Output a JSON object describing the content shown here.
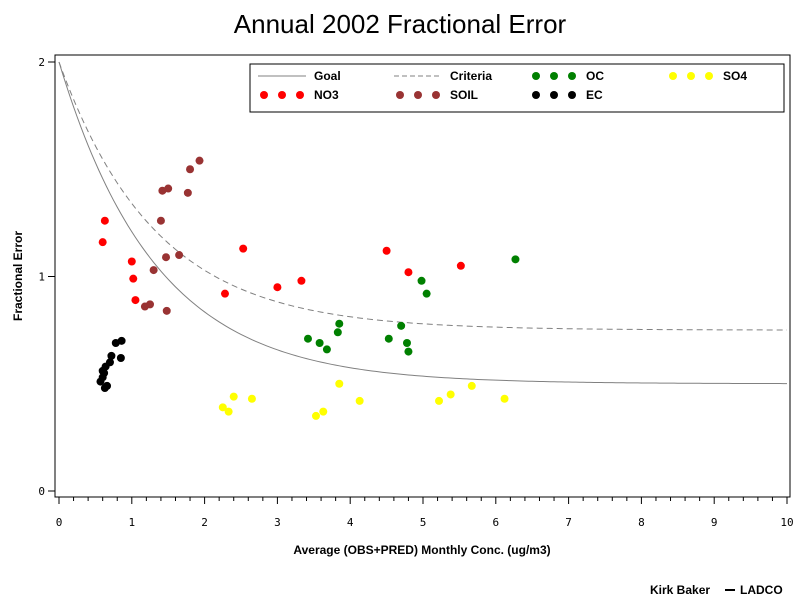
{
  "chart_data": {
    "type": "scatter",
    "title": "Annual 2002 Fractional Error",
    "xlabel": "Average (OBS+PRED) Monthly Conc. (ug/m3)",
    "ylabel": "Fractional Error",
    "xlim": [
      0,
      10
    ],
    "ylim": [
      0,
      2
    ],
    "x_ticks": [
      0,
      1,
      2,
      3,
      4,
      5,
      6,
      7,
      8,
      9,
      10
    ],
    "y_ticks": [
      0,
      1,
      2
    ],
    "grid": false,
    "legend_position": "top-right",
    "reference_curves": [
      {
        "name": "Goal",
        "style": "solid",
        "color": "#808080",
        "asymptote": 0.5,
        "start": 2.0,
        "decay": 0.75
      },
      {
        "name": "Criteria",
        "style": "dashed",
        "color": "#808080",
        "asymptote": 0.75,
        "start": 2.0,
        "decay": 0.75
      }
    ],
    "series": [
      {
        "name": "NO3",
        "color": "#ff0000",
        "points": [
          [
            0.6,
            1.16
          ],
          [
            0.63,
            1.26
          ],
          [
            1.0,
            1.07
          ],
          [
            1.02,
            0.99
          ],
          [
            1.05,
            0.89
          ],
          [
            2.28,
            0.92
          ],
          [
            2.53,
            1.13
          ],
          [
            3.0,
            0.95
          ],
          [
            3.33,
            0.98
          ],
          [
            4.5,
            1.12
          ],
          [
            4.8,
            1.02
          ],
          [
            5.52,
            1.05
          ]
        ]
      },
      {
        "name": "SOIL",
        "color": "#993333",
        "points": [
          [
            1.18,
            0.86
          ],
          [
            1.25,
            0.87
          ],
          [
            1.3,
            1.03
          ],
          [
            1.4,
            1.26
          ],
          [
            1.42,
            1.4
          ],
          [
            1.47,
            1.09
          ],
          [
            1.5,
            1.41
          ],
          [
            1.48,
            0.84
          ],
          [
            1.65,
            1.1
          ],
          [
            1.77,
            1.39
          ],
          [
            1.8,
            1.5
          ],
          [
            1.93,
            1.54
          ]
        ]
      },
      {
        "name": "OC",
        "color": "#008000",
        "points": [
          [
            3.42,
            0.71
          ],
          [
            3.58,
            0.69
          ],
          [
            3.68,
            0.66
          ],
          [
            3.83,
            0.74
          ],
          [
            3.85,
            0.78
          ],
          [
            4.53,
            0.71
          ],
          [
            4.7,
            0.77
          ],
          [
            4.78,
            0.69
          ],
          [
            4.8,
            0.65
          ],
          [
            4.98,
            0.98
          ],
          [
            5.05,
            0.92
          ],
          [
            6.27,
            1.08
          ]
        ]
      },
      {
        "name": "EC",
        "color": "#000000",
        "points": [
          [
            0.57,
            0.51
          ],
          [
            0.6,
            0.53
          ],
          [
            0.62,
            0.55
          ],
          [
            0.64,
            0.58
          ],
          [
            0.66,
            0.49
          ],
          [
            0.7,
            0.6
          ],
          [
            0.72,
            0.63
          ],
          [
            0.78,
            0.69
          ],
          [
            0.86,
            0.7
          ],
          [
            0.85,
            0.62
          ],
          [
            0.63,
            0.48
          ],
          [
            0.6,
            0.56
          ]
        ]
      },
      {
        "name": "SO4",
        "color": "#ffff00",
        "points": [
          [
            2.25,
            0.39
          ],
          [
            2.33,
            0.37
          ],
          [
            2.4,
            0.44
          ],
          [
            2.65,
            0.43
          ],
          [
            3.53,
            0.35
          ],
          [
            3.63,
            0.37
          ],
          [
            3.85,
            0.5
          ],
          [
            4.13,
            0.42
          ],
          [
            5.22,
            0.42
          ],
          [
            5.38,
            0.45
          ],
          [
            5.67,
            0.49
          ],
          [
            6.12,
            0.43
          ]
        ]
      }
    ]
  },
  "footer": {
    "credit_left": "Kirk Baker",
    "credit_right": "LADCO"
  }
}
